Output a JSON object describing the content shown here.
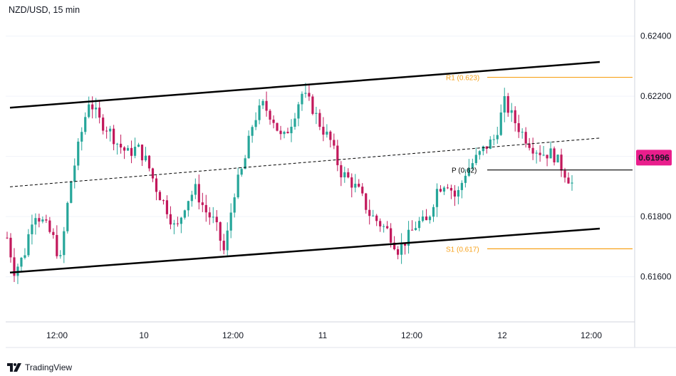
{
  "symbol_title": "NZD/USD, 15 min",
  "brand": {
    "name": "TradingView",
    "logo_icon": "tradingview-logo-icon"
  },
  "colors": {
    "candle_up": "#26a69a",
    "candle_down": "#c2185b",
    "channel": "#000000",
    "pivot_levels": "#f7a21b",
    "price_badge": "#e91e8c",
    "grid_axis": "#b2b5be"
  },
  "chart_data": {
    "type": "candlestick",
    "title": "NZD/USD, 15 min",
    "xlabel": "",
    "ylabel": "",
    "ylim": [
      0.6145,
      0.6252
    ],
    "y_ticks": [
      "0.62400",
      "0.62200",
      "0.62000",
      "0.61800",
      "0.61600"
    ],
    "x_ticks": [
      "12:00",
      "10",
      "12:00",
      "11",
      "12:00",
      "12",
      "12:00"
    ],
    "current_price": "0.61996",
    "pivot_levels": [
      {
        "label": "R1 (0.623)",
        "value": 0.62263
      },
      {
        "label": "P (0.62)",
        "value": 0.61955
      },
      {
        "label": "S1 (0.617)",
        "value": 0.61693
      }
    ],
    "channel": {
      "upper": {
        "start": 0.62162,
        "end": 0.62314
      },
      "middle": {
        "start": 0.61899,
        "end": 0.62061
      },
      "lower": {
        "start": 0.61614,
        "end": 0.6176
      }
    },
    "ohlc_path": [
      [
        0,
        0.6173
      ],
      [
        6,
        0.6162
      ],
      [
        14,
        0.6167
      ],
      [
        22,
        0.6182
      ],
      [
        30,
        0.6178
      ],
      [
        38,
        0.6173
      ],
      [
        44,
        0.6165
      ],
      [
        52,
        0.619
      ],
      [
        60,
        0.6205
      ],
      [
        68,
        0.6219
      ],
      [
        76,
        0.6212
      ],
      [
        84,
        0.6209
      ],
      [
        92,
        0.6204
      ],
      [
        100,
        0.6201
      ],
      [
        108,
        0.6203
      ],
      [
        116,
        0.6198
      ],
      [
        124,
        0.6189
      ],
      [
        132,
        0.6183
      ],
      [
        140,
        0.6175
      ],
      [
        148,
        0.6185
      ],
      [
        156,
        0.6189
      ],
      [
        164,
        0.6182
      ],
      [
        172,
        0.6178
      ],
      [
        180,
        0.6168
      ],
      [
        188,
        0.6188
      ],
      [
        196,
        0.6197
      ],
      [
        204,
        0.6212
      ],
      [
        212,
        0.6217
      ],
      [
        220,
        0.6213
      ],
      [
        228,
        0.6205
      ],
      [
        236,
        0.6212
      ],
      [
        244,
        0.6221
      ],
      [
        252,
        0.6217
      ],
      [
        260,
        0.621
      ],
      [
        268,
        0.6205
      ],
      [
        276,
        0.6195
      ],
      [
        284,
        0.6192
      ],
      [
        292,
        0.6188
      ],
      [
        300,
        0.6181
      ],
      [
        308,
        0.6178
      ],
      [
        316,
        0.6175
      ],
      [
        324,
        0.6169
      ],
      [
        332,
        0.6173
      ],
      [
        340,
        0.6178
      ],
      [
        348,
        0.6178
      ],
      [
        356,
        0.6189
      ],
      [
        364,
        0.6192
      ],
      [
        372,
        0.6186
      ],
      [
        380,
        0.6195
      ],
      [
        388,
        0.6199
      ],
      [
        396,
        0.6203
      ],
      [
        404,
        0.6206
      ],
      [
        412,
        0.6218
      ],
      [
        420,
        0.6212
      ],
      [
        428,
        0.6207
      ],
      [
        436,
        0.6203
      ],
      [
        444,
        0.6201
      ],
      [
        452,
        0.6201
      ],
      [
        460,
        0.6196
      ],
      [
        468,
        0.6191
      ]
    ]
  }
}
